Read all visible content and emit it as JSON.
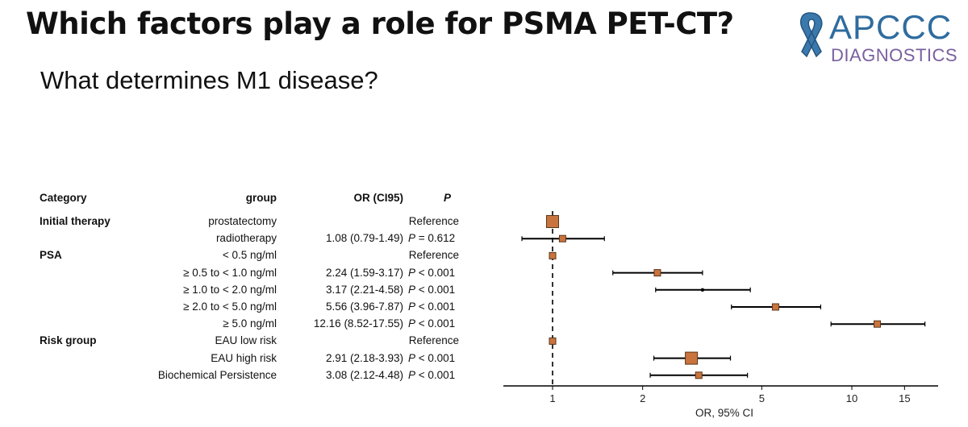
{
  "header": {
    "title": "Which factors play a role for PSMA PET-CT?",
    "subtitle": "What determines M1 disease?"
  },
  "logo": {
    "main": "APCCC",
    "sub": "DIAGNOSTICS",
    "icon": "awareness-ribbon-icon",
    "colors": {
      "main": "#2f6c9f",
      "sub": "#7a5f9e",
      "ribbon": "#3b79ad"
    }
  },
  "table": {
    "headers": {
      "category": "Category",
      "group": "group",
      "or": "OR (CI95)",
      "p": "P"
    },
    "rows": [
      {
        "category": "Initial therapy",
        "group": "prostatectomy",
        "or": "",
        "p_prefix": "",
        "p_value": "",
        "reference": "Reference"
      },
      {
        "category": "",
        "group": "radiotherapy",
        "or": "1.08 (0.79-1.49)",
        "p_prefix": "P",
        "p_value": " = 0.612",
        "reference": ""
      },
      {
        "category": "PSA",
        "group": "< 0.5 ng/ml",
        "or": "",
        "p_prefix": "",
        "p_value": "",
        "reference": "Reference"
      },
      {
        "category": "",
        "group": "≥ 0.5 to < 1.0 ng/ml",
        "or": "2.24 (1.59-3.17)",
        "p_prefix": "P",
        "p_value": " < 0.001",
        "reference": ""
      },
      {
        "category": "",
        "group": "≥ 1.0 to < 2.0 ng/ml",
        "or": "3.17 (2.21-4.58)",
        "p_prefix": "P",
        "p_value": " < 0.001",
        "reference": ""
      },
      {
        "category": "",
        "group": "≥ 2.0 to < 5.0 ng/ml",
        "or": "5.56 (3.96-7.87)",
        "p_prefix": "P",
        "p_value": " < 0.001",
        "reference": ""
      },
      {
        "category": "",
        "group": "≥ 5.0 ng/ml",
        "or": "12.16 (8.52-17.55)",
        "p_prefix": "P",
        "p_value": " < 0.001",
        "reference": ""
      },
      {
        "category": "Risk group",
        "group": "EAU low risk",
        "or": "",
        "p_prefix": "",
        "p_value": "",
        "reference": "Reference"
      },
      {
        "category": "",
        "group": "EAU high risk",
        "or": "2.91 (2.18-3.93)",
        "p_prefix": "P",
        "p_value": " < 0.001",
        "reference": ""
      },
      {
        "category": "",
        "group": "Biochemical Persistence",
        "or": "3.08 (2.12-4.48)",
        "p_prefix": "P",
        "p_value": " < 0.001",
        "reference": ""
      }
    ]
  },
  "chart_data": {
    "type": "forest",
    "xlabel": "OR, 95% CI",
    "x_scale": "log",
    "xlim": [
      0.6,
      20
    ],
    "ticks": [
      1,
      2,
      5,
      10,
      15
    ],
    "reference_line": 1,
    "marker_color": "#c9743f",
    "points": [
      {
        "or": 1.0,
        "lo": null,
        "hi": null,
        "weight": "large"
      },
      {
        "or": 1.08,
        "lo": 0.79,
        "hi": 1.49,
        "weight": "small"
      },
      {
        "or": 1.0,
        "lo": null,
        "hi": null,
        "weight": "small"
      },
      {
        "or": 2.24,
        "lo": 1.59,
        "hi": 3.17,
        "weight": "small"
      },
      {
        "or": 3.17,
        "lo": 2.21,
        "hi": 4.58,
        "weight": "dot"
      },
      {
        "or": 5.56,
        "lo": 3.96,
        "hi": 7.87,
        "weight": "small"
      },
      {
        "or": 12.16,
        "lo": 8.52,
        "hi": 17.55,
        "weight": "small"
      },
      {
        "or": 1.0,
        "lo": null,
        "hi": null,
        "weight": "small"
      },
      {
        "or": 2.91,
        "lo": 2.18,
        "hi": 3.93,
        "weight": "large"
      },
      {
        "or": 3.08,
        "lo": 2.12,
        "hi": 4.48,
        "weight": "small"
      }
    ]
  }
}
